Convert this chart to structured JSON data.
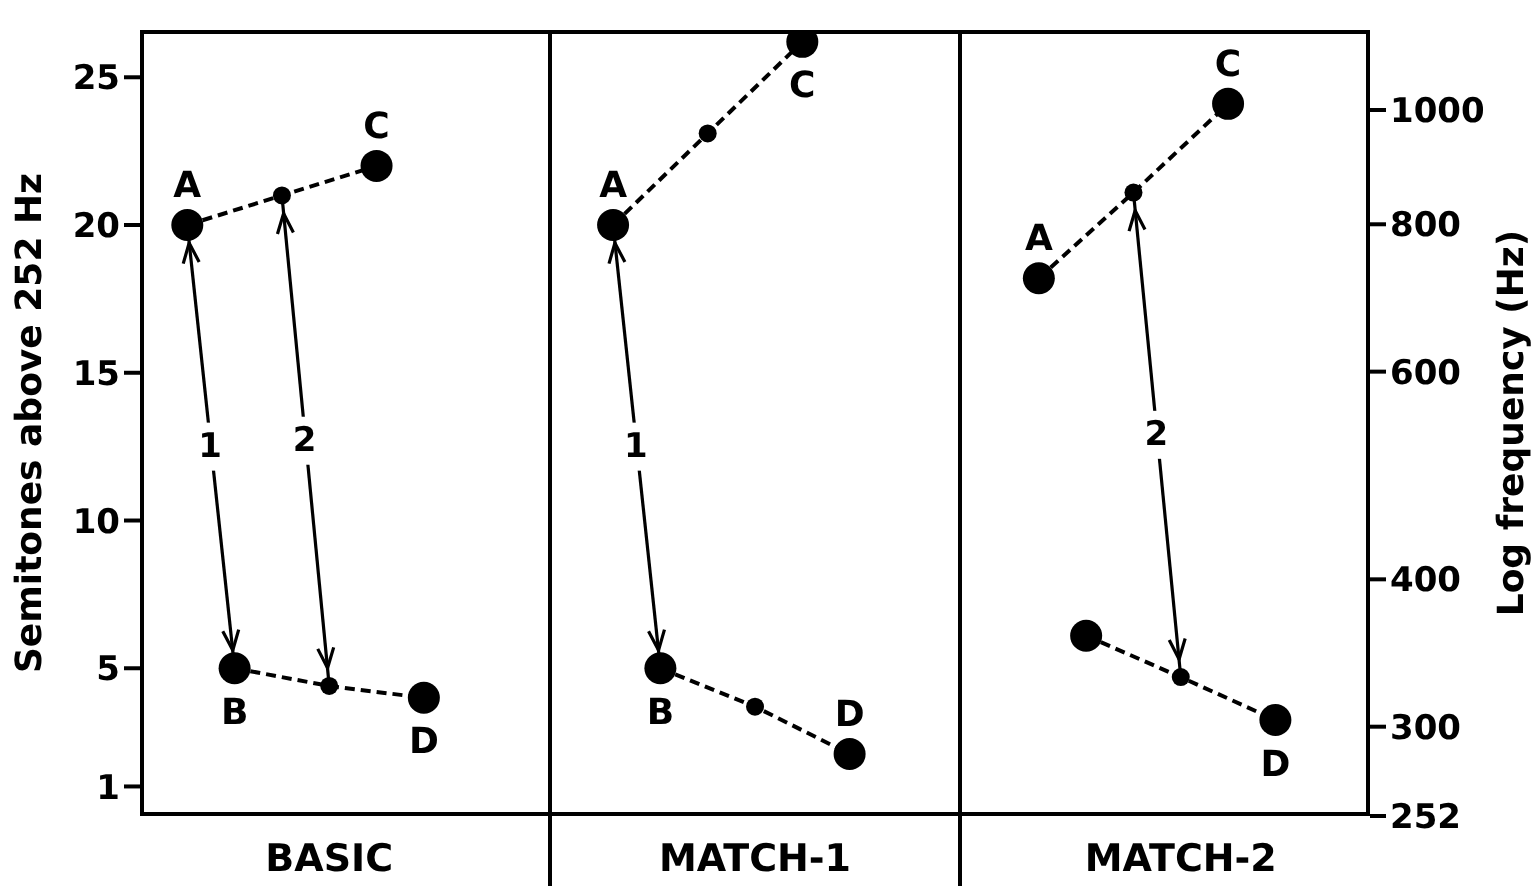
{
  "chart_data": {
    "type": "line",
    "ylabel": "Semitones above 252 Hz",
    "y2label": "Log frequency (Hz)",
    "categories": [
      null,
      null,
      null,
      null,
      "BASIC",
      null,
      null,
      null,
      null,
      null,
      null,
      null,
      null,
      "MATCH-1",
      null,
      null,
      null,
      null,
      null,
      null,
      null,
      null,
      "MATCH-2",
      null,
      null,
      null,
      null
    ],
    "ylim": [
      0,
      26.6
    ],
    "yticks": [
      1,
      5,
      10,
      15,
      20,
      25
    ],
    "y2lim": [
      252,
      1169
    ],
    "y2ticks": [
      252,
      300,
      400,
      600,
      800,
      1000
    ],
    "log": "y2",
    "series": [
      {
        "color": "#000000",
        "line_style": "dashed",
        "marker": "circle",
        "values": [
          null,
          20,
          null,
          21,
          null,
          22,
          null,
          null,
          null,
          null,
          null,
          null,
          null,
          null,
          null,
          null,
          null,
          null,
          null,
          null,
          null,
          null,
          null,
          null,
          null,
          null,
          null
        ],
        "value_labels": [
          null,
          "A",
          null,
          null,
          null,
          "C",
          null,
          null,
          null,
          null,
          null,
          null,
          null,
          null,
          null,
          null,
          null,
          null,
          null,
          null,
          null,
          null,
          null,
          null,
          null,
          null,
          null
        ]
      },
      {
        "color": "#000000",
        "line_style": "dashed",
        "marker": "circle",
        "values": [
          null,
          null,
          5,
          null,
          4.4,
          null,
          4,
          null,
          null,
          null,
          null,
          null,
          null,
          null,
          null,
          null,
          null,
          null,
          null,
          null,
          null,
          null,
          null,
          null,
          null,
          null,
          null
        ],
        "value_labels": [
          null,
          null,
          "B",
          null,
          null,
          null,
          "D",
          null,
          null,
          null,
          null,
          null,
          null,
          null,
          null,
          null,
          null,
          null,
          null,
          null,
          null,
          null,
          null,
          null,
          null,
          null,
          null
        ]
      },
      {
        "color": "#000000",
        "line_style": "dashed",
        "marker": "circle",
        "values": [
          null,
          null,
          null,
          null,
          null,
          null,
          null,
          null,
          null,
          null,
          20,
          null,
          23.1,
          null,
          26.2,
          null,
          null,
          null,
          null,
          null,
          null,
          null,
          null,
          null,
          null,
          null,
          null
        ],
        "value_labels": [
          null,
          null,
          null,
          null,
          null,
          null,
          null,
          null,
          null,
          null,
          "A",
          null,
          null,
          null,
          "C",
          null,
          null,
          null,
          null,
          null,
          null,
          null,
          null,
          null,
          null,
          null,
          null
        ]
      },
      {
        "color": "#000000",
        "line_style": "dashed",
        "marker": "circle",
        "values": [
          null,
          null,
          null,
          null,
          null,
          null,
          null,
          null,
          null,
          null,
          null,
          5,
          null,
          3.7,
          null,
          2.1,
          null,
          null,
          null,
          null,
          null,
          null,
          null,
          null,
          null,
          null,
          null
        ],
        "value_labels": [
          null,
          null,
          null,
          null,
          null,
          null,
          null,
          null,
          null,
          null,
          null,
          "B",
          null,
          null,
          null,
          "D",
          null,
          null,
          null,
          null,
          null,
          null,
          null,
          null,
          null,
          null,
          null
        ]
      },
      {
        "color": "#000000",
        "line_style": "dashed",
        "marker": "circle",
        "values": [
          null,
          null,
          null,
          null,
          null,
          null,
          null,
          null,
          null,
          null,
          null,
          null,
          null,
          null,
          null,
          null,
          null,
          null,
          null,
          18.2,
          null,
          21.1,
          null,
          24.1,
          null,
          null,
          null
        ],
        "value_labels": [
          null,
          null,
          null,
          null,
          null,
          null,
          null,
          null,
          null,
          null,
          null,
          null,
          null,
          null,
          null,
          null,
          null,
          null,
          null,
          "A",
          null,
          null,
          null,
          "C",
          null,
          null,
          null
        ]
      },
      {
        "color": "#000000",
        "line_style": "dashed",
        "marker": "circle",
        "values": [
          null,
          null,
          null,
          null,
          null,
          null,
          null,
          null,
          null,
          null,
          null,
          null,
          null,
          null,
          null,
          null,
          null,
          null,
          null,
          null,
          6.1,
          null,
          4.7,
          null,
          3.25,
          null,
          null
        ],
        "value_labels": [
          null,
          null,
          null,
          null,
          null,
          null,
          null,
          null,
          null,
          null,
          null,
          null,
          null,
          null,
          null,
          null,
          null,
          null,
          null,
          null,
          null,
          null,
          null,
          null,
          "D",
          null,
          null
        ]
      },
      {
        "name": "1",
        "color": "#000000",
        "line_style": "solid",
        "values": [
          null,
          20,
          5,
          null,
          null,
          null,
          null,
          null,
          null,
          null,
          null,
          null,
          null,
          null,
          null,
          null,
          null,
          null,
          null,
          null,
          null,
          null,
          null,
          null,
          null,
          null,
          null
        ]
      },
      {
        "name": "2",
        "color": "#000000",
        "line_style": "solid",
        "values": [
          null,
          null,
          null,
          21,
          4.4,
          null,
          null,
          null,
          null,
          null,
          null,
          null,
          null,
          null,
          null,
          null,
          null,
          null,
          null,
          null,
          null,
          null,
          null,
          null,
          null,
          null,
          null
        ]
      },
      {
        "name": "1",
        "color": "#000000",
        "line_style": "solid",
        "values": [
          null,
          null,
          null,
          null,
          null,
          null,
          null,
          null,
          null,
          null,
          20,
          5,
          null,
          null,
          null,
          null,
          null,
          null,
          null,
          null,
          null,
          null,
          null,
          null,
          null,
          null,
          null
        ]
      },
      {
        "name": "2",
        "color": "#000000",
        "line_style": "solid",
        "values": [
          null,
          null,
          null,
          null,
          null,
          null,
          null,
          null,
          null,
          null,
          null,
          null,
          null,
          null,
          null,
          null,
          null,
          null,
          null,
          null,
          null,
          21.1,
          4.7,
          null,
          null,
          null,
          null
        ]
      }
    ]
  }
}
